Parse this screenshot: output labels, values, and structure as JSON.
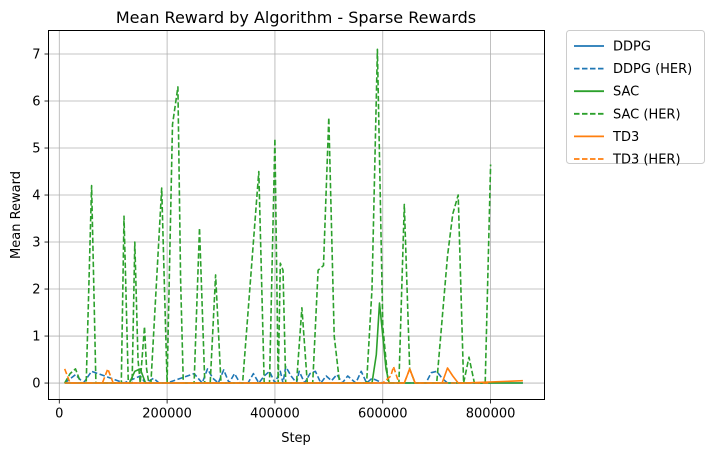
{
  "chart_data": {
    "type": "line",
    "title": "Mean Reward by Algorithm - Sparse Rewards",
    "xlabel": "Step",
    "ylabel": "Mean Reward",
    "xlim": [
      -20000,
      900000
    ],
    "ylim": [
      -0.35,
      7.5
    ],
    "xticks": [
      0,
      200000,
      400000,
      600000,
      800000
    ],
    "xtick_labels": [
      "0",
      "200000",
      "400000",
      "600000",
      "800000"
    ],
    "yticks": [
      0,
      1,
      2,
      3,
      4,
      5,
      6,
      7
    ],
    "ytick_labels": [
      "0",
      "1",
      "2",
      "3",
      "4",
      "5",
      "6",
      "7"
    ],
    "grid": true,
    "legend_position": "outside-top-right",
    "series": [
      {
        "name": "DDPG",
        "color": "#1f77b4",
        "dash": "solid",
        "x": [
          10000,
          860000
        ],
        "y": [
          0,
          0
        ]
      },
      {
        "name": "DDPG (HER)",
        "color": "#1f77b4",
        "dash": "dashed",
        "x": [
          10000,
          30000,
          45000,
          60000,
          120000,
          150000,
          160000,
          175000,
          185000,
          200000,
          250000,
          265000,
          275000,
          285000,
          295000,
          305000,
          315000,
          325000,
          335000,
          350000,
          360000,
          370000,
          380000,
          390000,
          400000,
          410000,
          415000,
          420000,
          430000,
          440000,
          445000,
          455000,
          465000,
          475000,
          485000,
          495000,
          505000,
          515000,
          525000,
          535000,
          550000,
          560000,
          570000,
          580000,
          600000,
          650000,
          680000,
          690000,
          700000,
          710000,
          720000,
          800000
        ],
        "y": [
          0,
          0.18,
          0,
          0.25,
          0,
          0.15,
          0,
          0.1,
          0,
          0,
          0.2,
          0,
          0.3,
          0.1,
          0,
          0.28,
          0,
          0.2,
          0,
          0,
          0.2,
          0,
          0.15,
          0.25,
          0,
          0.25,
          0,
          0.35,
          0.15,
          0,
          0.25,
          0,
          0.2,
          0.25,
          0,
          0.15,
          0.05,
          0.18,
          0,
          0.15,
          0,
          0.25,
          0,
          0.1,
          0,
          0,
          0,
          0.22,
          0.25,
          0.1,
          0,
          0
        ]
      },
      {
        "name": "SAC",
        "color": "#2ca02c",
        "dash": "solid",
        "x": [
          10000,
          130000,
          140000,
          150000,
          160000,
          580000,
          588000,
          594000,
          600000,
          606000,
          612000,
          860000
        ],
        "y": [
          0,
          0,
          0.25,
          0.3,
          0,
          0,
          0.6,
          1.7,
          1.0,
          0.3,
          0,
          0
        ]
      },
      {
        "name": "SAC (HER)",
        "color": "#2ca02c",
        "dash": "dashed",
        "x": [
          10000,
          20000,
          30000,
          40000,
          50000,
          60000,
          68000,
          100000,
          115000,
          120000,
          128000,
          135000,
          140000,
          146000,
          150000,
          158000,
          162000,
          166000,
          170000,
          190000,
          200000,
          210000,
          220000,
          225000,
          230000,
          240000,
          250000,
          260000,
          270000,
          280000,
          290000,
          300000,
          310000,
          320000,
          340000,
          350000,
          360000,
          370000,
          380000,
          390000,
          400000,
          406000,
          410000,
          415000,
          420000,
          430000,
          440000,
          450000,
          460000,
          470000,
          480000,
          490000,
          500000,
          510000,
          520000,
          540000,
          560000,
          570000,
          580000,
          590000,
          600000,
          610000,
          620000,
          630000,
          640000,
          650000,
          660000,
          680000,
          700000,
          720000,
          730000,
          740000,
          750000,
          760000,
          770000,
          780000,
          790000,
          800000
        ],
        "y": [
          0,
          0.2,
          0.3,
          0,
          0,
          4.2,
          0,
          0,
          0,
          3.55,
          0,
          0,
          3.0,
          0.5,
          0,
          1.2,
          0.3,
          0,
          0,
          4.15,
          0,
          5.5,
          6.3,
          2.2,
          0,
          0,
          0,
          3.3,
          0,
          0,
          2.3,
          0,
          0,
          0,
          0,
          1.5,
          3.0,
          4.5,
          0,
          0,
          5.2,
          0,
          2.55,
          2.4,
          0,
          0,
          0,
          1.6,
          0,
          0,
          2.4,
          2.5,
          5.65,
          1.0,
          0,
          0,
          0,
          0,
          2.0,
          7.1,
          1.2,
          0,
          0,
          0,
          3.8,
          0.3,
          0,
          0,
          0,
          2.7,
          3.6,
          4.0,
          0,
          0.55,
          0,
          0,
          0,
          4.65
        ]
      },
      {
        "name": "TD3",
        "color": "#ff7f0e",
        "dash": "solid",
        "x": [
          10000,
          640000,
          650000,
          660000,
          710000,
          720000,
          730000,
          740000,
          750000,
          860000
        ],
        "y": [
          0,
          0,
          0.3,
          0,
          0,
          0.32,
          0.15,
          0,
          0,
          0.05
        ]
      },
      {
        "name": "TD3 (HER)",
        "color": "#ff7f0e",
        "dash": "dashed",
        "x": [
          10000,
          20000,
          30000,
          80000,
          90000,
          100000,
          300000,
          400000,
          500000,
          600000,
          615000,
          620000,
          630000,
          640000,
          650000,
          660000,
          700000,
          800000
        ],
        "y": [
          0.3,
          0,
          0,
          0,
          0.3,
          0,
          0,
          0,
          0,
          0,
          0.15,
          0.35,
          0,
          0,
          0.3,
          0,
          0,
          0
        ]
      }
    ]
  }
}
